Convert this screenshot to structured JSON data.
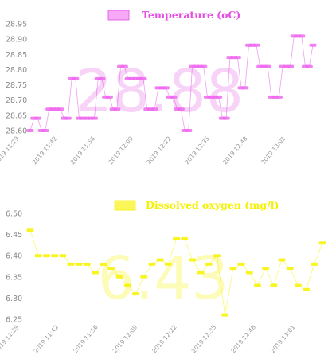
{
  "chart_data": [
    {
      "type": "line",
      "legend": "Temperature (oC)",
      "current_value": "28.88",
      "color": "#e24fe2",
      "point_fill": "#ee6aee",
      "legend_fill": "#f7a8f7",
      "ylim": [
        28.6,
        28.95
      ],
      "yticks": [
        "28.95",
        "28.90",
        "28.85",
        "28.80",
        "28.75",
        "28.70",
        "28.65",
        "28.60"
      ],
      "xticks": [
        "2019 11:29",
        "2019 11:42",
        "2019 11:56",
        "2019 12:09",
        "2019 12:22",
        "2019 12:35",
        "2019 12:48",
        "2019 13:01"
      ],
      "series": [
        {
          "values": [
            28.6,
            28.64,
            28.64,
            28.6,
            28.6,
            28.67,
            28.67,
            28.67,
            28.67,
            28.64,
            28.64,
            28.77,
            28.77,
            28.64,
            28.64,
            28.64,
            28.64,
            28.64,
            28.77,
            28.77,
            28.71,
            28.71,
            28.67,
            28.67,
            28.81,
            28.81,
            28.77,
            28.77,
            28.77,
            28.77,
            28.77,
            28.67,
            28.67,
            28.67,
            28.74,
            28.74,
            28.74,
            28.71,
            28.71,
            28.67,
            28.67,
            28.6,
            28.6,
            28.81,
            28.81,
            28.81,
            28.81,
            28.71,
            28.71,
            28.71,
            28.71,
            28.64,
            28.64,
            28.84,
            28.84,
            28.84,
            28.74,
            28.74,
            28.88,
            28.88,
            28.88,
            28.81,
            28.81,
            28.81,
            28.71,
            28.71,
            28.71,
            28.81,
            28.81,
            28.81,
            28.91,
            28.91,
            28.91,
            28.81,
            28.81,
            28.88
          ]
        }
      ]
    },
    {
      "type": "line",
      "legend": "Dissolved oxygen (mg/l)",
      "current_value": "6.43",
      "color": "#f5f200",
      "point_fill": "#f7f200",
      "legend_fill": "#fbf75a",
      "ylim": [
        6.25,
        6.5
      ],
      "yticks": [
        "6.50",
        "6.45",
        "6.40",
        "6.35",
        "6.30",
        "6.25"
      ],
      "xticks": [
        "2019 11:29",
        "2019 11:42",
        "2019 11:56",
        "2019 12:09",
        "2019 12:22",
        "2019 12:35",
        "2019 12:48",
        "2019 13:01"
      ],
      "series": [
        {
          "values": [
            6.46,
            6.4,
            6.4,
            6.4,
            6.4,
            6.38,
            6.38,
            6.38,
            6.36,
            6.38,
            6.37,
            6.35,
            6.33,
            6.31,
            6.35,
            6.38,
            6.39,
            6.38,
            6.44,
            6.44,
            6.39,
            6.36,
            6.38,
            6.4,
            6.26,
            6.37,
            6.38,
            6.36,
            6.33,
            6.37,
            6.33,
            6.39,
            6.37,
            6.33,
            6.32,
            6.38,
            6.43
          ]
        }
      ]
    }
  ]
}
